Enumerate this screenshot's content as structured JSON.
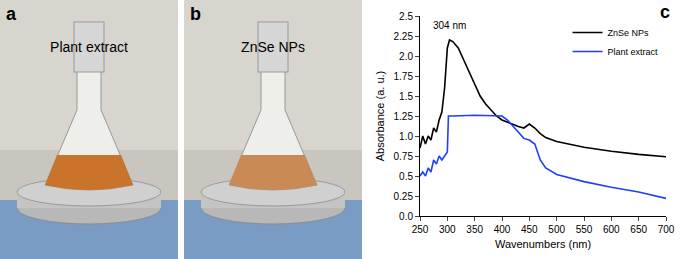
{
  "panels": [
    {
      "letter": "a",
      "caption": "Plant extract"
    },
    {
      "letter": "b",
      "caption": "ZnSe NPs"
    },
    {
      "letter": "c"
    }
  ],
  "chart_data": {
    "type": "line",
    "x_label": "Wavenumbers (nm)",
    "y_label": "Absorbance (a. u.)",
    "annotations": [
      {
        "text": "304 nm",
        "x": 304,
        "y": 2.38
      }
    ],
    "series": [
      {
        "name": "ZnSe NPs",
        "color": "#000000",
        "x": [
          250,
          255,
          260,
          265,
          270,
          275,
          280,
          285,
          290,
          295,
          300,
          304,
          310,
          320,
          330,
          340,
          350,
          360,
          370,
          380,
          390,
          400,
          410,
          420,
          430,
          440,
          450,
          460,
          470,
          480,
          500,
          550,
          600,
          650,
          700
        ],
        "values": [
          0.85,
          1.0,
          0.9,
          1.0,
          0.95,
          1.1,
          1.05,
          1.2,
          1.3,
          1.6,
          2.1,
          2.2,
          2.18,
          2.1,
          1.95,
          1.8,
          1.65,
          1.5,
          1.4,
          1.32,
          1.25,
          1.2,
          1.17,
          1.14,
          1.12,
          1.1,
          1.15,
          1.1,
          1.03,
          0.98,
          0.93,
          0.86,
          0.81,
          0.77,
          0.74
        ]
      },
      {
        "name": "Plant extract",
        "color": "#1f3fff",
        "x": [
          250,
          255,
          260,
          265,
          270,
          275,
          280,
          285,
          290,
          295,
          300,
          302,
          310,
          350,
          400,
          410,
          420,
          430,
          440,
          450,
          460,
          470,
          480,
          500,
          550,
          600,
          650,
          700
        ],
        "values": [
          0.5,
          0.55,
          0.5,
          0.6,
          0.55,
          0.7,
          0.65,
          0.75,
          0.7,
          0.75,
          0.8,
          1.25,
          1.25,
          1.26,
          1.25,
          1.2,
          1.12,
          1.05,
          0.97,
          0.95,
          0.9,
          0.7,
          0.6,
          0.52,
          0.43,
          0.36,
          0.3,
          0.22
        ]
      }
    ],
    "xlim": [
      250,
      700
    ],
    "xticks": [
      250,
      300,
      350,
      400,
      450,
      500,
      550,
      600,
      650,
      700
    ],
    "ylim": [
      0,
      2.5
    ],
    "yticks": [
      {
        "value": 0,
        "label": "0.0"
      },
      0.25,
      0.5,
      0.75,
      {
        "value": 1,
        "label": "1.0"
      },
      1.25,
      1.5,
      1.75,
      {
        "value": 2,
        "label": "2.0"
      },
      2.25,
      2.5
    ],
    "grid": false,
    "legend": "upper right"
  }
}
